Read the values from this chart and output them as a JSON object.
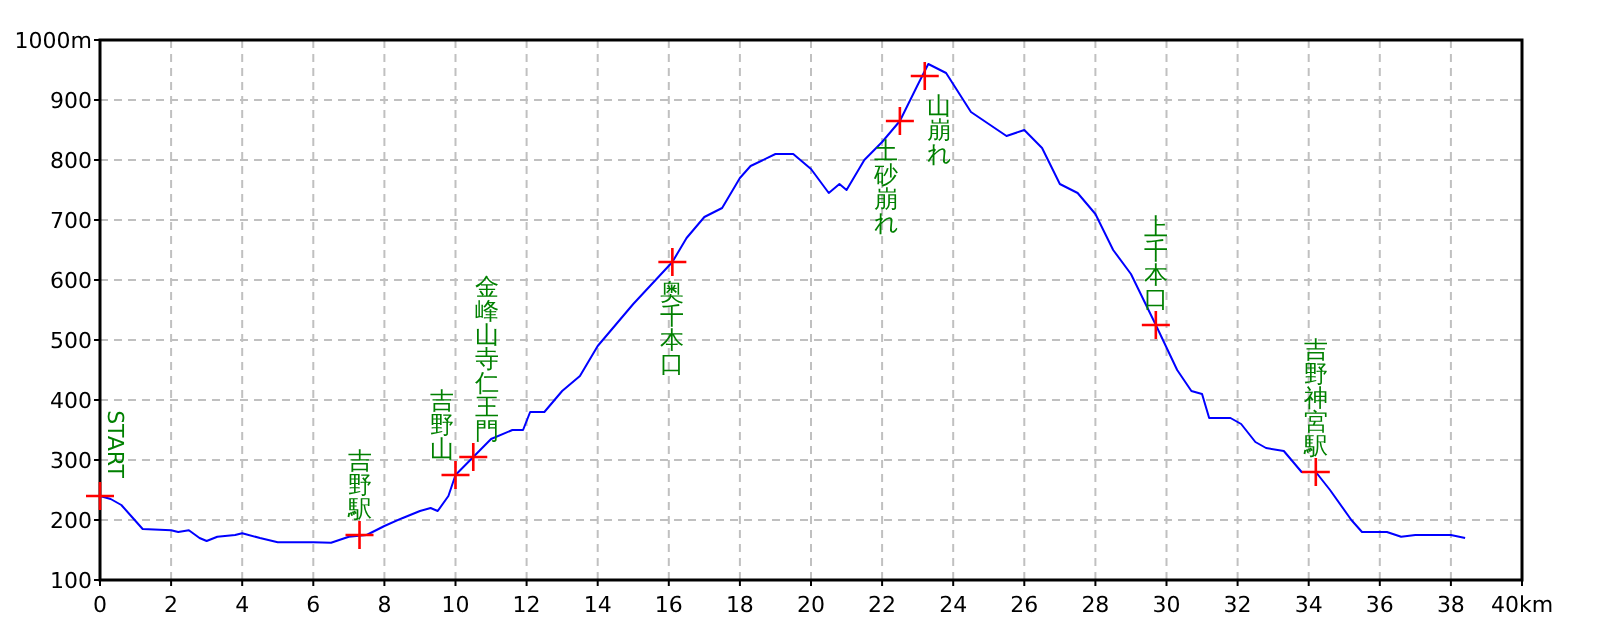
{
  "chart_data": {
    "type": "line",
    "xlim": [
      0,
      40
    ],
    "ylim": [
      100,
      1000
    ],
    "xticks": [
      0,
      2,
      4,
      6,
      8,
      10,
      12,
      14,
      16,
      18,
      20,
      22,
      24,
      26,
      28,
      30,
      32,
      34,
      36,
      38,
      {
        "value": 40,
        "label": "40km"
      }
    ],
    "yticks": [
      100,
      200,
      300,
      400,
      500,
      600,
      700,
      800,
      900,
      {
        "value": 1000,
        "label": "1000m"
      }
    ],
    "grid": true,
    "series": [
      {
        "color": "#0000ff",
        "marker": "none",
        "x": [
          0,
          0.3,
          0.6,
          0.9,
          1.2,
          2,
          2.2,
          2.5,
          2.8,
          3,
          3.3,
          3.8,
          4,
          4.5,
          5,
          6,
          6.5,
          7,
          7.5,
          8,
          8.5,
          9,
          9.3,
          9.5,
          9.8,
          10,
          10.5,
          11,
          11.6,
          11.9,
          12.1,
          12.5,
          13,
          13.5,
          14,
          15,
          16.1,
          16.5,
          17,
          17.5,
          18,
          18.3,
          19,
          19.5,
          20,
          20.5,
          20.8,
          21,
          21.5,
          22,
          22.5,
          23,
          23.3,
          23.8,
          24.5,
          25,
          25.5,
          26,
          26.5,
          27,
          27.5,
          28,
          28.5,
          29,
          29.7,
          30.3,
          30.7,
          31,
          31.2,
          31.8,
          32.1,
          32.5,
          32.8,
          33.3,
          33.8,
          34.2,
          34.6,
          35.2,
          35.5,
          36.2,
          36.6,
          37,
          38,
          38.4
        ],
        "values": [
          240,
          235,
          225,
          205,
          185,
          183,
          180,
          183,
          170,
          165,
          172,
          175,
          178,
          170,
          163,
          163,
          162,
          172,
          175,
          190,
          203,
          215,
          220,
          215,
          240,
          275,
          305,
          335,
          350,
          350,
          380,
          380,
          415,
          440,
          490,
          560,
          630,
          670,
          705,
          720,
          770,
          790,
          810,
          810,
          785,
          745,
          760,
          750,
          800,
          830,
          865,
          925,
          960,
          945,
          880,
          860,
          840,
          850,
          820,
          760,
          745,
          710,
          650,
          610,
          525,
          450,
          415,
          410,
          370,
          370,
          360,
          330,
          320,
          315,
          280,
          280,
          250,
          200,
          180,
          180,
          172,
          175,
          175,
          170
        ]
      },
      {
        "type": "scatter",
        "color": "#ff0000",
        "marker": "cross",
        "x": [
          0,
          7.3,
          10,
          10.5,
          16.1,
          22.5,
          23.2,
          29.7,
          34.2
        ],
        "values": [
          240,
          175,
          275,
          305,
          630,
          865,
          940,
          525,
          280
        ]
      }
    ],
    "annotations": [
      {
        "text": "START",
        "x": 0,
        "y": 240
      },
      {
        "text": "吉野駅",
        "x": 7.3,
        "y": 175
      },
      {
        "text": "吉野山",
        "x": 10,
        "y": 275
      },
      {
        "text": "金峰山寺仁王門",
        "x": 10.5,
        "y": 305
      },
      {
        "text": "奥千本口",
        "x": 16.1,
        "y": 630
      },
      {
        "text": "土砂崩れ",
        "x": 22.5,
        "y": 865
      },
      {
        "text": "山崩れ",
        "x": 23.2,
        "y": 940
      },
      {
        "text": "上千本口",
        "x": 29.7,
        "y": 525
      },
      {
        "text": "吉野神宮駅",
        "x": 34.2,
        "y": 280
      }
    ]
  }
}
